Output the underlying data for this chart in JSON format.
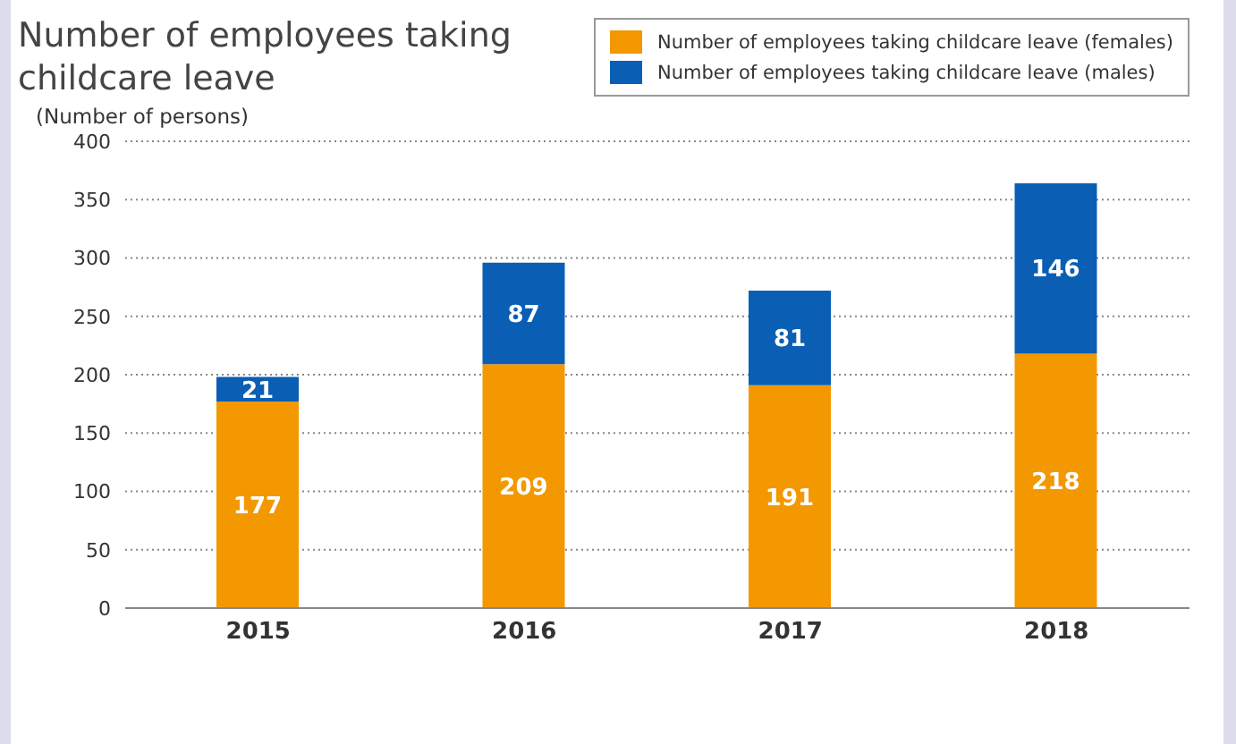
{
  "chart_data": {
    "type": "bar",
    "title": "Number of employees taking childcare leave",
    "ylabel": "(Number of persons)",
    "categories": [
      "2015",
      "2016",
      "2017",
      "2018"
    ],
    "series": [
      {
        "name": "Number of employees taking childcare leave (females)",
        "color": "#f39800",
        "values": [
          177,
          209,
          191,
          218
        ]
      },
      {
        "name": "Number of employees taking childcare leave (males)",
        "color": "#0a5fb4",
        "values": [
          21,
          87,
          81,
          146
        ]
      }
    ],
    "stacked": true,
    "ylim": [
      0,
      400
    ],
    "yticks": [
      0,
      50,
      100,
      150,
      200,
      250,
      300,
      350,
      400
    ],
    "grid": "y",
    "legend": "top right",
    "data_labels": true
  }
}
